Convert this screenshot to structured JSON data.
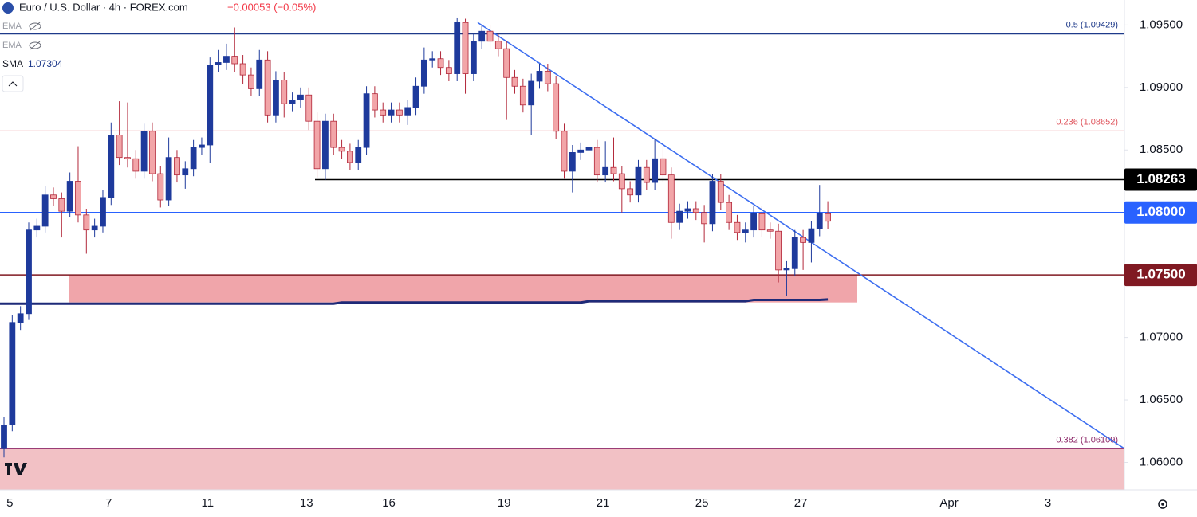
{
  "chart_data": {
    "type": "candlestick",
    "title": "Euro / U.S. Dollar · 4h · FOREX.com",
    "change": "−0.00053 (−0.05%)",
    "ylim": [
      1.0578,
      1.097
    ],
    "yticks": [
      {
        "value": 1.095,
        "label": "1.09500"
      },
      {
        "value": 1.09,
        "label": "1.09000"
      },
      {
        "value": 1.085,
        "label": "1.08500"
      },
      {
        "value": 1.08,
        "label": "1.08000"
      },
      {
        "value": 1.075,
        "label": "1.07500"
      },
      {
        "value": 1.07,
        "label": "1.07000"
      },
      {
        "value": 1.065,
        "label": "1.06500"
      },
      {
        "value": 1.06,
        "label": "1.06000"
      }
    ],
    "up_color": "#1e3a9c",
    "down_color": "#f2a5a8",
    "categories": [
      null,
      "5",
      null,
      null,
      null,
      null,
      null,
      null,
      null,
      null,
      null,
      null,
      null,
      "7",
      null,
      null,
      null,
      null,
      null,
      null,
      null,
      null,
      null,
      null,
      null,
      "11",
      null,
      null,
      null,
      null,
      null,
      null,
      null,
      null,
      null,
      null,
      null,
      "13",
      null,
      null,
      null,
      null,
      null,
      null,
      null,
      null,
      null,
      "16",
      null,
      null,
      null,
      null,
      null,
      null,
      null,
      null,
      null,
      null,
      null,
      null,
      null,
      "19",
      null,
      null,
      null,
      null,
      null,
      null,
      null,
      null,
      null,
      null,
      null,
      "21",
      null,
      null,
      null,
      null,
      null,
      null,
      null,
      null,
      null,
      null,
      null,
      "25",
      null,
      null,
      null,
      null,
      null,
      null,
      null,
      null,
      null,
      null,
      null,
      "27",
      null,
      null,
      null,
      null,
      null,
      null,
      null,
      null,
      null,
      null,
      null,
      null,
      null,
      null,
      null,
      null,
      null,
      "Apr",
      null,
      null,
      null,
      null,
      null,
      null,
      null,
      null,
      null,
      null,
      null,
      "3",
      null,
      null,
      null,
      null,
      null,
      null,
      null,
      null,
      null
    ],
    "open": [
      1.0611,
      1.063,
      1.0712,
      1.0719,
      1.0786,
      1.0789,
      1.0814,
      1.0811,
      1.0801,
      1.0825,
      1.0798,
      1.0786,
      1.0789,
      1.0812,
      1.0862,
      1.0844,
      1.0843,
      1.0833,
      1.0865,
      1.0831,
      1.081,
      1.0844,
      1.083,
      1.0835,
      1.0852,
      1.0854,
      1.0918,
      1.092,
      1.0925,
      1.0919,
      1.091,
      1.0899,
      1.0922,
      1.0878,
      1.0906,
      1.0887,
      1.089,
      1.0894,
      1.0873,
      1.0835,
      1.0873,
      1.0852,
      1.0849,
      1.084,
      1.0852,
      1.0895,
      1.0882,
      1.0878,
      1.0882,
      1.0878,
      1.0884,
      1.0901,
      1.0922,
      1.0923,
      1.0916,
      1.0911,
      1.0952,
      1.0911,
      1.0937,
      1.0945,
      1.0937,
      1.0931,
      1.0908,
      1.0901,
      1.0886,
      1.0905,
      1.0913,
      1.0903,
      1.0865,
      1.0833,
      1.0848,
      1.085,
      1.0852,
      1.083,
      1.0836,
      1.0831,
      1.0819,
      1.0814,
      1.0836,
      1.0824,
      1.0843,
      1.083,
      1.0792,
      1.0801,
      1.0803,
      1.08,
      1.0791,
      1.0825,
      1.0808,
      1.0792,
      1.0784,
      1.0786,
      1.0799,
      1.0786,
      1.0785,
      1.0754,
      1.0755,
      1.078,
      1.0776,
      1.0787,
      1.0799,
      null,
      null,
      null,
      null,
      null,
      null,
      null,
      null,
      null,
      null,
      null,
      null,
      null,
      null,
      null,
      null,
      null,
      null,
      null,
      null,
      null,
      null,
      null,
      null,
      null,
      null,
      null,
      null,
      null,
      null,
      null,
      null,
      null,
      null,
      null,
      null
    ],
    "high": [
      1.0636,
      1.0718,
      1.0725,
      1.0792,
      1.0795,
      1.0821,
      1.082,
      1.0816,
      1.0832,
      1.0853,
      1.0803,
      1.0795,
      1.0818,
      1.0872,
      1.0889,
      1.0888,
      1.085,
      1.0871,
      1.0872,
      1.0837,
      1.086,
      1.085,
      1.0841,
      1.0858,
      1.086,
      1.0924,
      1.093,
      1.0935,
      1.0948,
      1.0926,
      1.0916,
      1.093,
      1.0929,
      1.0913,
      1.0912,
      1.0896,
      1.09,
      1.09,
      1.088,
      1.0879,
      1.0879,
      1.0858,
      1.0855,
      1.0858,
      1.0901,
      1.0901,
      1.0888,
      1.0888,
      1.0888,
      1.089,
      1.0908,
      1.0932,
      1.0929,
      1.0929,
      1.0922,
      1.0956,
      1.0955,
      1.0943,
      1.095,
      1.095,
      1.0943,
      1.0937,
      1.0914,
      1.0907,
      1.0911,
      1.0919,
      1.0919,
      1.0909,
      1.0871,
      1.0854,
      1.0856,
      1.0858,
      1.0858,
      1.0857,
      1.086,
      1.0837,
      1.0825,
      1.0842,
      1.0842,
      1.0859,
      1.0852,
      1.0836,
      1.0807,
      1.0809,
      1.0809,
      1.0806,
      1.0831,
      1.0831,
      1.0814,
      1.0798,
      1.0792,
      1.0805,
      1.0805,
      1.0792,
      1.0791,
      1.0761,
      1.0786,
      1.0786,
      1.0793,
      1.0822,
      1.0809,
      null,
      null,
      null,
      null,
      null,
      null,
      null,
      null,
      null,
      null,
      null,
      null,
      null,
      null,
      null,
      null,
      null,
      null,
      null,
      null,
      null,
      null,
      null,
      null,
      null,
      null,
      null,
      null,
      null,
      null,
      null,
      null,
      null,
      null,
      null,
      null
    ],
    "low": [
      1.0604,
      1.0625,
      1.0706,
      1.0714,
      1.078,
      1.0784,
      1.0805,
      1.078,
      1.0796,
      1.0792,
      1.0767,
      1.078,
      1.0784,
      1.0806,
      1.0838,
      1.0836,
      1.0827,
      1.0827,
      1.0825,
      1.0804,
      1.0805,
      1.0824,
      1.0819,
      1.0829,
      1.0846,
      1.084,
      1.0912,
      1.0914,
      1.0912,
      1.0903,
      1.0893,
      1.0893,
      1.0872,
      1.0872,
      1.0876,
      1.0881,
      1.0884,
      1.0866,
      1.0828,
      1.0826,
      1.0846,
      1.0843,
      1.0834,
      1.0834,
      1.0846,
      1.0876,
      1.0872,
      1.0872,
      1.0872,
      1.087,
      1.0878,
      1.0895,
      1.0916,
      1.091,
      1.0905,
      1.0905,
      1.0895,
      1.0905,
      1.0931,
      1.0931,
      1.0925,
      1.0874,
      1.0895,
      1.088,
      1.0862,
      1.0899,
      1.0897,
      1.0859,
      1.0827,
      1.0816,
      1.0842,
      1.0844,
      1.0824,
      1.0824,
      1.0825,
      1.08,
      1.0808,
      1.0808,
      1.0818,
      1.0818,
      1.0824,
      1.0779,
      1.0786,
      1.0795,
      1.0794,
      1.0776,
      1.0785,
      1.0802,
      1.0786,
      1.0778,
      1.0776,
      1.078,
      1.078,
      1.0779,
      1.0744,
      1.0733,
      1.0749,
      1.0754,
      1.076,
      1.0781,
      1.0787,
      null,
      null,
      null,
      null,
      null,
      null,
      null,
      null,
      null,
      null,
      null,
      null,
      null,
      null,
      null,
      null,
      null,
      null,
      null,
      null,
      null,
      null,
      null,
      null,
      null,
      null,
      null,
      null,
      null,
      null,
      null,
      null,
      null,
      null,
      null,
      null
    ],
    "close": [
      1.063,
      1.0712,
      1.0719,
      1.0786,
      1.0789,
      1.0814,
      1.0811,
      1.0801,
      1.0825,
      1.0798,
      1.0786,
      1.0789,
      1.0812,
      1.0862,
      1.0844,
      1.0843,
      1.0833,
      1.0865,
      1.0831,
      1.081,
      1.0844,
      1.083,
      1.0835,
      1.0852,
      1.0854,
      1.0918,
      1.092,
      1.0925,
      1.0919,
      1.091,
      1.0899,
      1.0922,
      1.0878,
      1.0906,
      1.0887,
      1.089,
      1.0894,
      1.0873,
      1.0835,
      1.0873,
      1.0852,
      1.0849,
      1.084,
      1.0852,
      1.0895,
      1.0882,
      1.0878,
      1.0882,
      1.0878,
      1.0884,
      1.0901,
      1.0922,
      1.0923,
      1.0916,
      1.0911,
      1.0952,
      1.0911,
      1.0937,
      1.0945,
      1.0937,
      1.0931,
      1.0908,
      1.0901,
      1.0886,
      1.0905,
      1.0913,
      1.0903,
      1.0865,
      1.0833,
      1.0848,
      1.085,
      1.0852,
      1.083,
      1.0836,
      1.0831,
      1.0819,
      1.0814,
      1.0836,
      1.0824,
      1.0843,
      1.083,
      1.0792,
      1.0801,
      1.0803,
      1.08,
      1.0791,
      1.0825,
      1.0808,
      1.0792,
      1.0784,
      1.0786,
      1.0799,
      1.0786,
      1.0785,
      1.0754,
      1.0755,
      1.078,
      1.0776,
      1.0787,
      1.0799,
      1.0793,
      null,
      null,
      null,
      null,
      null,
      null,
      null,
      null,
      null,
      null,
      null,
      null,
      null,
      null,
      null,
      null,
      null,
      null,
      null,
      null,
      null,
      null,
      null,
      null,
      null,
      null,
      null,
      null,
      null,
      null,
      null,
      null,
      null,
      null,
      null,
      null
    ],
    "indicators": [
      {
        "name": "EMA"
      },
      {
        "name": "EMA"
      },
      {
        "name": "SMA",
        "color": "#1e2a78",
        "values": [
          1.0727,
          1.0727,
          1.0727,
          1.0727,
          1.0727,
          1.0727,
          1.0727,
          1.0727,
          1.0727,
          1.0727,
          1.0727,
          1.0727,
          1.0727,
          1.0727,
          1.0727,
          1.0727,
          1.0727,
          1.0727,
          1.0727,
          1.0727,
          1.0727,
          1.0727,
          1.0727,
          1.0727,
          1.0727,
          1.0727,
          1.0727,
          1.0727,
          1.0727,
          1.0727,
          1.0727,
          1.0727,
          1.0727,
          1.0727,
          1.0727,
          1.0727,
          1.0727,
          1.0727,
          1.0727,
          1.0727,
          1.0727,
          1.0728,
          1.0728,
          1.0728,
          1.0728,
          1.0728,
          1.0728,
          1.0728,
          1.0728,
          1.0728,
          1.0728,
          1.0728,
          1.0728,
          1.0728,
          1.0728,
          1.0728,
          1.0728,
          1.0728,
          1.0728,
          1.0728,
          1.0728,
          1.0728,
          1.0728,
          1.0728,
          1.0728,
          1.0728,
          1.0728,
          1.0728,
          1.0728,
          1.0728,
          1.0728,
          1.0729,
          1.0729,
          1.0729,
          1.0729,
          1.0729,
          1.0729,
          1.0729,
          1.0729,
          1.0729,
          1.0729,
          1.0729,
          1.0729,
          1.0729,
          1.0729,
          1.0729,
          1.0729,
          1.0729,
          1.0729,
          1.0729,
          1.0729,
          1.073,
          1.073,
          1.073,
          1.073,
          1.073,
          1.073,
          1.073,
          1.073,
          1.073,
          1.07304,
          null,
          null,
          null,
          null,
          null,
          null,
          null,
          null,
          null,
          null,
          null,
          null,
          null,
          null,
          null,
          null,
          null,
          null,
          null,
          null,
          null,
          null,
          null,
          null,
          null,
          null,
          null,
          null,
          null,
          null,
          null,
          null,
          null,
          null,
          null,
          null
        ]
      }
    ],
    "fib_levels": [
      {
        "label": "0.5 (1.09429)",
        "value": 1.09429,
        "color": "#1e3a8a"
      },
      {
        "label": "0.236 (1.08652)",
        "value": 1.08652,
        "color": "#e0575f"
      },
      {
        "label": "0.382 (1.06109)",
        "value": 1.06109,
        "color": "#8e2a6a"
      }
    ],
    "price_tags": [
      {
        "value": 1.08263,
        "color": "#000000"
      },
      {
        "value": 1.08,
        "label": "1.08000",
        "color": "#2962ff"
      },
      {
        "value": 1.075,
        "label": "1.07500",
        "color": "#801922"
      }
    ],
    "zones": [
      {
        "top": 1.075,
        "bottom": 1.0728,
        "color": "#f0a5aa"
      },
      {
        "top": 1.06109,
        "color": "#f2c1c5"
      }
    ],
    "trendline": {
      "values": [
        1.0952,
        1.0611
      ],
      "color": "#3d6ef0"
    }
  }
}
